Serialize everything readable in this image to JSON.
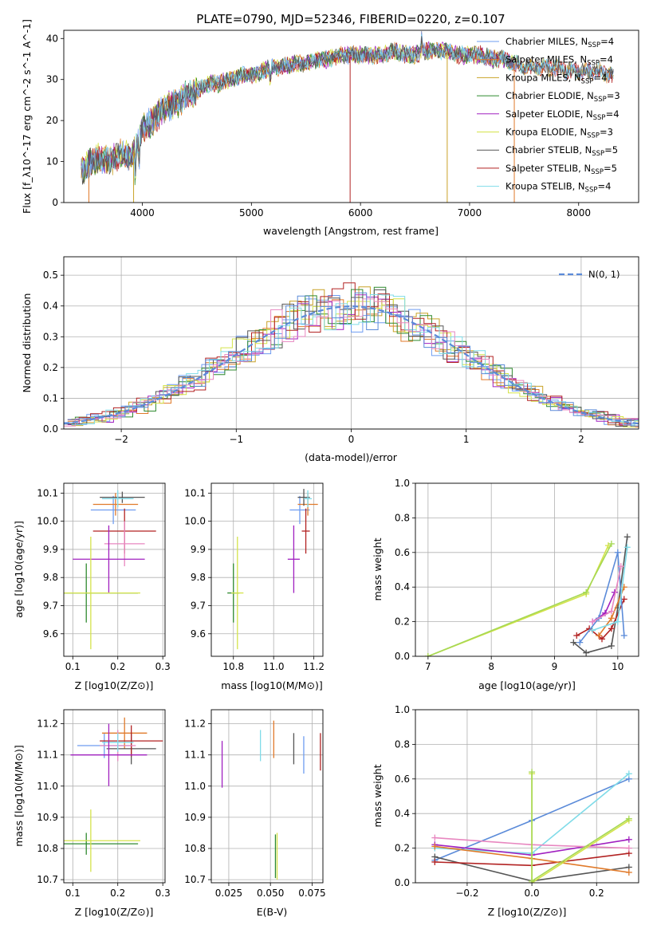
{
  "figure_title": "PLATE=0790, MJD=52346, FIBERID=0220, z=0.107",
  "colors": {
    "Chabrier MILES": "#6e9cf0",
    "Salpeter MILES": "#e07a2a",
    "Kroupa MILES": "#c9a227",
    "Chabrier ELODIE": "#2f8a2f",
    "Salpeter ELODIE": "#a020c0",
    "Kroupa ELODIE": "#d4e34a",
    "Chabrier STELIB": "#555555",
    "Salpeter STELIB": "#b22222",
    "Kroupa STELIB": "#7fdbe8",
    "extra_pink": "#e887c0",
    "extra_blue": "#5b8bd9",
    "extra_lime": "#a6d854"
  },
  "chart_data": [
    {
      "id": "spectrum",
      "type": "line",
      "xlabel": "wavelength [Angstrom, rest frame]",
      "ylabel": "Flux [f_λ10^-17 erg cm^-2 s^-1 A^-1]",
      "xlim": [
        3280,
        8550
      ],
      "ylim": [
        0,
        42
      ],
      "xticks": [
        4000,
        5000,
        6000,
        7000,
        8000
      ],
      "yticks": [
        0,
        10,
        20,
        30,
        40
      ],
      "grid": false,
      "legend_position": "right",
      "legend": [
        {
          "base": "Chabrier MILES, N",
          "sub": "SSP",
          "val": "=4"
        },
        {
          "base": "Salpeter MILES, N",
          "sub": "SSP",
          "val": "=4"
        },
        {
          "base": "Kroupa MILES, N",
          "sub": "SSP",
          "val": "=4"
        },
        {
          "base": "Chabrier ELODIE, N",
          "sub": "SSP",
          "val": "=3"
        },
        {
          "base": "Salpeter ELODIE, N",
          "sub": "SSP",
          "val": "=4"
        },
        {
          "base": "Kroupa ELODIE, N",
          "sub": "SSP",
          "val": "=3"
        },
        {
          "base": "Chabrier STELIB, N",
          "sub": "SSP",
          "val": "=5"
        },
        {
          "base": "Salpeter STELIB, N",
          "sub": "SSP",
          "val": "=5"
        },
        {
          "base": "Kroupa STELIB, N",
          "sub": "SSP",
          "val": "=4"
        }
      ],
      "envelope": [
        [
          3440,
          8
        ],
        [
          3500,
          9
        ],
        [
          3600,
          11
        ],
        [
          3700,
          10
        ],
        [
          3800,
          12
        ],
        [
          3900,
          11
        ],
        [
          3950,
          14
        ],
        [
          4000,
          18
        ],
        [
          4100,
          20
        ],
        [
          4200,
          23
        ],
        [
          4300,
          24
        ],
        [
          4400,
          26
        ],
        [
          4500,
          27
        ],
        [
          4600,
          29
        ],
        [
          4700,
          29
        ],
        [
          4800,
          30
        ],
        [
          4900,
          31
        ],
        [
          5000,
          31
        ],
        [
          5100,
          32
        ],
        [
          5200,
          33
        ],
        [
          5300,
          33
        ],
        [
          5400,
          34
        ],
        [
          5500,
          34
        ],
        [
          5600,
          35
        ],
        [
          5700,
          35
        ],
        [
          5800,
          36
        ],
        [
          5900,
          36
        ],
        [
          6000,
          36
        ],
        [
          6100,
          36
        ],
        [
          6200,
          36
        ],
        [
          6300,
          37
        ],
        [
          6400,
          36
        ],
        [
          6500,
          36
        ],
        [
          6600,
          37
        ],
        [
          6700,
          37
        ],
        [
          6800,
          37
        ],
        [
          6900,
          36
        ],
        [
          7000,
          36
        ],
        [
          7100,
          36
        ],
        [
          7200,
          35
        ],
        [
          7300,
          35
        ],
        [
          7400,
          34
        ],
        [
          7500,
          33
        ],
        [
          7600,
          33
        ],
        [
          7700,
          33
        ],
        [
          7800,
          33
        ],
        [
          7900,
          32
        ],
        [
          8000,
          32
        ],
        [
          8100,
          32
        ],
        [
          8200,
          32
        ],
        [
          8300,
          31
        ]
      ]
    },
    {
      "id": "residuals",
      "type": "histogram",
      "xlabel": "(data-model)/error",
      "ylabel": "Normed distribution",
      "xlim": [
        -2.5,
        2.5
      ],
      "ylim": [
        0,
        0.56
      ],
      "xticks": [
        -2,
        -1,
        0,
        1,
        2
      ],
      "yticks": [
        0.0,
        0.1,
        0.2,
        0.3,
        0.4,
        0.5
      ],
      "grid": true,
      "legend_position": "top-right",
      "reference_curve": {
        "name": "N(0, 1)",
        "mean": 0,
        "sigma": 1
      }
    },
    {
      "id": "age_vs_Z",
      "type": "errorbar",
      "xlabel": "Z [log10(Z/Z⊙)]",
      "ylabel": "age [log10(age/yr)]",
      "xlim": [
        0.08,
        0.305
      ],
      "ylim": [
        9.52,
        10.135
      ],
      "xticks": [
        0.1,
        0.2,
        0.3
      ],
      "yticks": [
        9.6,
        9.7,
        9.8,
        9.9,
        10.0,
        10.1
      ],
      "grid": true,
      "points": [
        {
          "c": "Chabrier MILES",
          "x": 0.19,
          "y": 10.04,
          "xerr": 0.05,
          "yerr": 0.05
        },
        {
          "c": "Salpeter MILES",
          "x": 0.195,
          "y": 10.06,
          "xerr": 0.05,
          "yerr": 0.04
        },
        {
          "c": "Chabrier STELIB",
          "x": 0.21,
          "y": 10.085,
          "xerr": 0.05,
          "yerr": 0.02
        },
        {
          "c": "Salpeter STELIB",
          "x": 0.215,
          "y": 9.965,
          "xerr": 0.07,
          "yerr": 0.08
        },
        {
          "c": "extra_pink",
          "x": 0.215,
          "y": 9.92,
          "xerr": 0.045,
          "yerr": 0.08
        },
        {
          "c": "Kroupa STELIB",
          "x": 0.2,
          "y": 10.08,
          "xerr": 0.035,
          "yerr": 0.03
        },
        {
          "c": "Salpeter ELODIE",
          "x": 0.18,
          "y": 9.865,
          "xerr": 0.08,
          "yerr": 0.12
        },
        {
          "c": "Chabrier ELODIE",
          "x": 0.13,
          "y": 9.745,
          "xerr": 0.115,
          "yerr": 0.105
        },
        {
          "c": "Kroupa ELODIE",
          "x": 0.14,
          "y": 9.745,
          "xerr": 0.11,
          "yerr": 0.2
        }
      ]
    },
    {
      "id": "age_vs_mass",
      "type": "errorbar",
      "xlabel": "mass [log10(M/M⊙)]",
      "ylabel": "",
      "xlim": [
        10.69,
        11.245
      ],
      "ylim": [
        9.52,
        10.135
      ],
      "xticks": [
        10.8,
        11.0,
        11.2
      ],
      "yticks": [
        9.6,
        9.7,
        9.8,
        9.9,
        10.0,
        10.1
      ],
      "grid": true,
      "points": [
        {
          "c": "Chabrier MILES",
          "x": 11.13,
          "y": 10.04,
          "xerr": 0.05,
          "yerr": 0.05
        },
        {
          "c": "Salpeter MILES",
          "x": 11.17,
          "y": 10.06,
          "xerr": 0.05,
          "yerr": 0.04
        },
        {
          "c": "Chabrier STELIB",
          "x": 11.15,
          "y": 10.085,
          "xerr": 0.03,
          "yerr": 0.03
        },
        {
          "c": "Salpeter STELIB",
          "x": 11.16,
          "y": 9.965,
          "xerr": 0.02,
          "yerr": 0.08
        },
        {
          "c": "Kroupa STELIB",
          "x": 11.17,
          "y": 10.08,
          "xerr": 0.02,
          "yerr": 0.03
        },
        {
          "c": "Salpeter ELODIE",
          "x": 11.1,
          "y": 9.865,
          "xerr": 0.03,
          "yerr": 0.12
        },
        {
          "c": "Chabrier ELODIE",
          "x": 10.8,
          "y": 9.745,
          "xerr": 0.03,
          "yerr": 0.105
        },
        {
          "c": "Kroupa ELODIE",
          "x": 10.82,
          "y": 9.745,
          "xerr": 0.03,
          "yerr": 0.2
        }
      ]
    },
    {
      "id": "weight_vs_age",
      "type": "line",
      "xlabel": "age [log10(age/yr)]",
      "ylabel": "mass weight",
      "xlim": [
        6.8,
        10.33
      ],
      "ylim": [
        0,
        1.0
      ],
      "xticks": [
        7,
        8,
        9,
        10
      ],
      "yticks": [
        0.0,
        0.2,
        0.4,
        0.6,
        0.8,
        1.0
      ],
      "grid": true,
      "series": [
        {
          "c": "Kroupa ELODIE",
          "points": [
            [
              7.0,
              0.0
            ],
            [
              9.5,
              0.36
            ],
            [
              9.85,
              0.64
            ]
          ]
        },
        {
          "c": "extra_lime",
          "points": [
            [
              7.0,
              0.0
            ],
            [
              9.5,
              0.37
            ],
            [
              9.9,
              0.65
            ]
          ]
        },
        {
          "c": "Chabrier STELIB",
          "points": [
            [
              9.3,
              0.08
            ],
            [
              9.5,
              0.02
            ],
            [
              9.9,
              0.06
            ],
            [
              10.0,
              0.28
            ],
            [
              10.15,
              0.69
            ]
          ]
        },
        {
          "c": "Salpeter STELIB",
          "points": [
            [
              9.35,
              0.12
            ],
            [
              9.55,
              0.16
            ],
            [
              9.75,
              0.1
            ],
            [
              9.9,
              0.16
            ],
            [
              10.1,
              0.33
            ]
          ]
        },
        {
          "c": "Salpeter ELODIE",
          "points": [
            [
              9.6,
              0.2
            ],
            [
              9.8,
              0.25
            ],
            [
              9.95,
              0.37
            ]
          ]
        },
        {
          "c": "extra_blue",
          "points": [
            [
              9.4,
              0.08
            ],
            [
              9.7,
              0.22
            ],
            [
              10.0,
              0.6
            ],
            [
              10.1,
              0.12
            ]
          ]
        },
        {
          "c": "Salpeter MILES",
          "points": [
            [
              9.7,
              0.12
            ],
            [
              9.9,
              0.22
            ],
            [
              10.1,
              0.4
            ]
          ]
        },
        {
          "c": "Kroupa STELIB",
          "points": [
            [
              9.6,
              0.15
            ],
            [
              10.0,
              0.2
            ],
            [
              10.15,
              0.63
            ]
          ]
        },
        {
          "c": "extra_pink",
          "points": [
            [
              9.6,
              0.2
            ],
            [
              9.9,
              0.26
            ],
            [
              10.05,
              0.52
            ]
          ]
        }
      ]
    },
    {
      "id": "mass_vs_Z",
      "type": "errorbar",
      "xlabel": "Z [log10(Z/Z⊙)]",
      "ylabel": "mass [log10(M/M⊙)]",
      "xlim": [
        0.08,
        0.305
      ],
      "ylim": [
        10.69,
        11.245
      ],
      "xticks": [
        0.1,
        0.2,
        0.3
      ],
      "yticks": [
        10.7,
        10.8,
        10.9,
        11.0,
        11.1,
        11.2
      ],
      "grid": true,
      "points": [
        {
          "c": "Chabrier MILES",
          "x": 0.17,
          "y": 11.13,
          "xerr": 0.06,
          "yerr": 0.04
        },
        {
          "c": "Salpeter MILES",
          "x": 0.215,
          "y": 11.17,
          "xerr": 0.05,
          "yerr": 0.05
        },
        {
          "c": "Chabrier STELIB",
          "x": 0.23,
          "y": 11.12,
          "xerr": 0.055,
          "yerr": 0.05
        },
        {
          "c": "Salpeter STELIB",
          "x": 0.23,
          "y": 11.145,
          "xerr": 0.07,
          "yerr": 0.05
        },
        {
          "c": "extra_pink",
          "x": 0.2,
          "y": 11.13,
          "xerr": 0.04,
          "yerr": 0.05
        },
        {
          "c": "Kroupa STELIB",
          "x": 0.2,
          "y": 11.14,
          "xerr": 0.035,
          "yerr": 0.03
        },
        {
          "c": "Salpeter ELODIE",
          "x": 0.18,
          "y": 11.1,
          "xerr": 0.085,
          "yerr": 0.1
        },
        {
          "c": "Chabrier ELODIE",
          "x": 0.13,
          "y": 10.815,
          "xerr": 0.115,
          "yerr": 0.035
        },
        {
          "c": "Kroupa ELODIE",
          "x": 0.14,
          "y": 10.825,
          "xerr": 0.11,
          "yerr": 0.1
        }
      ]
    },
    {
      "id": "mass_vs_EBV",
      "type": "errorbar",
      "xlabel": "E(B-V)",
      "ylabel": "",
      "xlim": [
        0.0145,
        0.0815
      ],
      "ylim": [
        10.69,
        11.245
      ],
      "xticks": [
        0.025,
        0.05,
        0.075
      ],
      "yticks": [
        10.7,
        10.8,
        10.9,
        11.0,
        11.1,
        11.2
      ],
      "grid": true,
      "points": [
        {
          "c": "Salpeter ELODIE",
          "x": 0.021,
          "y": 11.07,
          "xerr": 0,
          "yerr": 0.075
        },
        {
          "c": "Kroupa STELIB",
          "x": 0.044,
          "y": 11.13,
          "xerr": 0,
          "yerr": 0.05
        },
        {
          "c": "Salpeter MILES",
          "x": 0.052,
          "y": 11.15,
          "xerr": 0,
          "yerr": 0.06
        },
        {
          "c": "Chabrier STELIB",
          "x": 0.064,
          "y": 11.12,
          "xerr": 0,
          "yerr": 0.05
        },
        {
          "c": "Chabrier MILES",
          "x": 0.07,
          "y": 11.1,
          "xerr": 0,
          "yerr": 0.06
        },
        {
          "c": "Salpeter STELIB",
          "x": 0.08,
          "y": 11.11,
          "xerr": 0,
          "yerr": 0.06
        },
        {
          "c": "Chabrier ELODIE",
          "x": 0.053,
          "y": 10.775,
          "xerr": 0,
          "yerr": 0.07
        },
        {
          "c": "Kroupa ELODIE",
          "x": 0.054,
          "y": 10.775,
          "xerr": 0,
          "yerr": 0.075
        }
      ]
    },
    {
      "id": "weight_vs_Z",
      "type": "line",
      "xlabel": "Z [log10(Z/Z⊙)]",
      "ylabel": "mass weight",
      "xlim": [
        -0.36,
        0.33
      ],
      "ylim": [
        0,
        1.0
      ],
      "xticks": [
        -0.2,
        0.0,
        0.2
      ],
      "yticks": [
        0.0,
        0.2,
        0.4,
        0.6,
        0.8,
        1.0
      ],
      "grid": true,
      "series": [
        {
          "c": "extra_blue",
          "points": [
            [
              -0.3,
              0.13
            ],
            [
              0.0,
              0.36
            ],
            [
              0.3,
              0.6
            ]
          ]
        },
        {
          "c": "Kroupa STELIB",
          "points": [
            [
              -0.3,
              0.2
            ],
            [
              0.0,
              0.17
            ],
            [
              0.3,
              0.63
            ]
          ]
        },
        {
          "c": "Chabrier STELIB",
          "points": [
            [
              -0.3,
              0.15
            ],
            [
              0.0,
              0.01
            ],
            [
              0.3,
              0.09
            ]
          ]
        },
        {
          "c": "Salpeter STELIB",
          "points": [
            [
              -0.3,
              0.12
            ],
            [
              0.0,
              0.1
            ],
            [
              0.3,
              0.17
            ]
          ]
        },
        {
          "c": "Salpeter ELODIE",
          "points": [
            [
              -0.3,
              0.22
            ],
            [
              0.0,
              0.16
            ],
            [
              0.3,
              0.25
            ]
          ]
        },
        {
          "c": "extra_pink",
          "points": [
            [
              -0.3,
              0.26
            ],
            [
              0.0,
              0.22
            ],
            [
              0.3,
              0.2
            ]
          ]
        },
        {
          "c": "Salpeter MILES",
          "points": [
            [
              -0.3,
              0.21
            ],
            [
              0.0,
              0.14
            ],
            [
              0.3,
              0.06
            ]
          ]
        },
        {
          "c": "Kroupa ELODIE",
          "points": [
            [
              0.0,
              0.63
            ],
            [
              0.0,
              0.0
            ],
            [
              0.3,
              0.36
            ]
          ]
        },
        {
          "c": "extra_lime",
          "points": [
            [
              0.0,
              0.64
            ],
            [
              0.0,
              0.01
            ],
            [
              0.3,
              0.37
            ]
          ]
        }
      ]
    }
  ]
}
